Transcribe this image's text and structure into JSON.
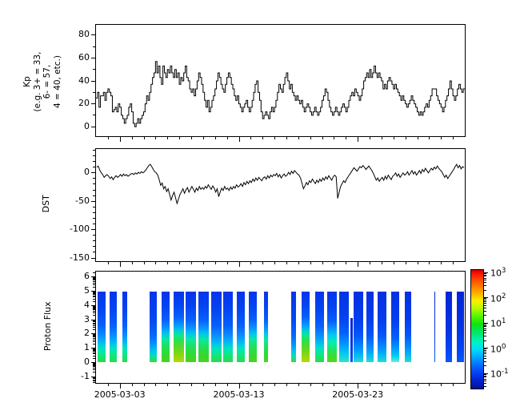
{
  "figure": {
    "background": "#ffffff",
    "line_color": "#000000"
  },
  "xaxis": {
    "tick_days": [
      2,
      12,
      22
    ],
    "tick_labels": [
      "2005-03-03",
      "2005-03-13",
      "2005-03-23"
    ],
    "minor_tick_every_days": 1,
    "total_days": 31,
    "x_range": [
      "2005-03-01",
      "2005-04-01"
    ]
  },
  "chart_data": [
    {
      "type": "line",
      "subtype": "step",
      "ylabel": "Kp (e.g. 3+ = 33, 6- = 57, 4 = 40, etc.)",
      "ylabel_lines": [
        "Kp",
        "(e.g. 3+ = 33,",
        "6- = 57,",
        "4 = 40, etc.)"
      ],
      "color": "#000000",
      "ylim": [
        -8.3,
        89
      ],
      "yticks": [
        0,
        20,
        40,
        60,
        80
      ],
      "ytick_labels": [
        "0",
        "20",
        "40",
        "60",
        "80"
      ],
      "yminor": [
        10,
        30,
        50,
        70
      ],
      "points_per_day": 8,
      "values": [
        25,
        30,
        17,
        27,
        27,
        30,
        23,
        30,
        33,
        30,
        27,
        13,
        15,
        17,
        13,
        20,
        17,
        10,
        7,
        3,
        7,
        10,
        17,
        20,
        13,
        3,
        0,
        3,
        7,
        3,
        7,
        10,
        13,
        20,
        27,
        23,
        30,
        37,
        43,
        47,
        57,
        47,
        53,
        43,
        37,
        53,
        47,
        43,
        50,
        47,
        53,
        47,
        43,
        50,
        43,
        47,
        37,
        43,
        40,
        47,
        53,
        43,
        40,
        33,
        30,
        33,
        27,
        33,
        40,
        47,
        43,
        37,
        30,
        23,
        17,
        23,
        13,
        17,
        23,
        27,
        33,
        40,
        47,
        43,
        37,
        33,
        30,
        37,
        43,
        47,
        43,
        37,
        33,
        27,
        23,
        27,
        20,
        17,
        13,
        17,
        20,
        23,
        17,
        13,
        17,
        23,
        30,
        37,
        40,
        30,
        23,
        13,
        7,
        10,
        13,
        10,
        7,
        13,
        17,
        13,
        17,
        23,
        30,
        37,
        33,
        30,
        37,
        43,
        47,
        40,
        33,
        37,
        30,
        27,
        23,
        27,
        23,
        20,
        23,
        17,
        13,
        17,
        20,
        17,
        13,
        10,
        13,
        17,
        13,
        10,
        13,
        17,
        23,
        27,
        33,
        30,
        23,
        17,
        13,
        10,
        13,
        17,
        13,
        10,
        13,
        17,
        20,
        17,
        13,
        17,
        23,
        27,
        30,
        27,
        33,
        30,
        27,
        23,
        27,
        33,
        40,
        43,
        47,
        43,
        50,
        43,
        47,
        53,
        47,
        43,
        47,
        43,
        40,
        33,
        37,
        33,
        40,
        43,
        40,
        37,
        33,
        37,
        33,
        30,
        27,
        23,
        27,
        23,
        20,
        17,
        20,
        23,
        27,
        23,
        20,
        17,
        13,
        10,
        13,
        10,
        13,
        17,
        20,
        17,
        23,
        27,
        33,
        33,
        33,
        27,
        23,
        20,
        17,
        13,
        17,
        23,
        27,
        33,
        40,
        33,
        27,
        23,
        27,
        33,
        37,
        33,
        30,
        33
      ]
    },
    {
      "type": "line",
      "ylabel": "DST",
      "color": "#000000",
      "ylim": [
        -155.6,
        42
      ],
      "yticks": [
        0,
        -50,
        -100,
        -150
      ],
      "ytick_labels": [
        "0",
        "-50",
        "-100",
        "-150"
      ],
      "yminor_step": 10,
      "points_per_day": 8,
      "values": [
        10,
        12,
        5,
        0,
        -3,
        -8,
        -5,
        -3,
        -6,
        -10,
        -7,
        -12,
        -8,
        -5,
        -8,
        -6,
        -3,
        -6,
        -2,
        -5,
        -3,
        -6,
        -4,
        -2,
        -1,
        -3,
        0,
        -2,
        1,
        -1,
        2,
        0,
        2,
        5,
        9,
        13,
        15,
        11,
        6,
        2,
        0,
        -4,
        -12,
        -22,
        -18,
        -28,
        -24,
        -33,
        -28,
        -38,
        -48,
        -40,
        -34,
        -44,
        -54,
        -46,
        -38,
        -33,
        -28,
        -36,
        -30,
        -26,
        -34,
        -29,
        -24,
        -29,
        -34,
        -27,
        -31,
        -24,
        -29,
        -26,
        -29,
        -24,
        -27,
        -21,
        -25,
        -29,
        -23,
        -27,
        -34,
        -28,
        -42,
        -34,
        -27,
        -31,
        -24,
        -29,
        -27,
        -31,
        -25,
        -29,
        -24,
        -27,
        -21,
        -25,
        -23,
        -19,
        -24,
        -17,
        -21,
        -15,
        -19,
        -14,
        -17,
        -11,
        -15,
        -9,
        -13,
        -8,
        -11,
        -14,
        -9,
        -7,
        -11,
        -5,
        -9,
        -4,
        -7,
        -3,
        -5,
        -1,
        -7,
        -3,
        -9,
        -5,
        -2,
        -6,
        -4,
        1,
        -3,
        3,
        -1,
        4,
        1,
        -2,
        -4,
        -9,
        -18,
        -28,
        -23,
        -17,
        -21,
        -14,
        -17,
        -11,
        -15,
        -19,
        -13,
        -17,
        -11,
        -15,
        -9,
        -13,
        -7,
        -11,
        -5,
        -9,
        -13,
        -7,
        -4,
        -7,
        -45,
        -34,
        -24,
        -19,
        -14,
        -17,
        -11,
        -7,
        -3,
        1,
        5,
        9,
        6,
        3,
        7,
        11,
        9,
        13,
        10,
        6,
        9,
        12,
        8,
        4,
        -1,
        -7,
        -13,
        -9,
        -15,
        -11,
        -8,
        -13,
        -6,
        -11,
        -4,
        -8,
        -12,
        -6,
        -4,
        0,
        -6,
        -2,
        -8,
        -4,
        0,
        -4,
        -2,
        2,
        -4,
        0,
        4,
        -2,
        2,
        -4,
        0,
        4,
        -1,
        6,
        2,
        8,
        4,
        0,
        4,
        8,
        5,
        10,
        7,
        12,
        8,
        5,
        2,
        -3,
        -8,
        -4,
        -10,
        -6,
        -2,
        2,
        6,
        11,
        15,
        9,
        13,
        7,
        11,
        9
      ]
    },
    {
      "type": "heatmap",
      "ylabel": "Proton Flux",
      "ylim": [
        -1.44,
        6.39
      ],
      "yticks": [
        -1,
        0,
        1,
        2,
        3,
        4,
        5,
        6
      ],
      "ytick_labels": [
        "-1",
        "0",
        "1",
        "2",
        "3",
        "4",
        "5",
        "6"
      ],
      "yminor_log": true,
      "bars": [
        {
          "start_day": 0.15,
          "end_day": 0.78,
          "profile": "med",
          "y_top": 5,
          "y_bottom": 0
        },
        {
          "start_day": 1.15,
          "end_day": 1.78,
          "profile": "med",
          "y_top": 5,
          "y_bottom": 0
        },
        {
          "start_day": 2.2,
          "end_day": 2.62,
          "profile": "med",
          "y_top": 5,
          "y_bottom": 0
        },
        {
          "start_day": 4.5,
          "end_day": 5.1,
          "profile": "med2",
          "y_top": 5,
          "y_bottom": 0
        },
        {
          "start_day": 5.5,
          "end_day": 6.2,
          "profile": "strong",
          "y_top": 5,
          "y_bottom": 0
        },
        {
          "start_day": 6.55,
          "end_day": 7.4,
          "profile": "vstrong",
          "y_top": 5,
          "y_bottom": 0
        },
        {
          "start_day": 7.52,
          "end_day": 8.42,
          "profile": "strong",
          "y_top": 5,
          "y_bottom": 0
        },
        {
          "start_day": 8.58,
          "end_day": 9.5,
          "profile": "strong",
          "y_top": 5,
          "y_bottom": 0
        },
        {
          "start_day": 9.68,
          "end_day": 10.52,
          "profile": "med",
          "y_top": 5,
          "y_bottom": 0
        },
        {
          "start_day": 10.72,
          "end_day": 11.52,
          "profile": "med",
          "y_top": 5,
          "y_bottom": 0
        },
        {
          "start_day": 11.85,
          "end_day": 12.52,
          "profile": "med",
          "y_top": 5,
          "y_bottom": 0
        },
        {
          "start_day": 12.85,
          "end_day": 13.52,
          "profile": "strong",
          "y_top": 5,
          "y_bottom": 0
        },
        {
          "start_day": 14.1,
          "end_day": 14.48,
          "profile": "strong",
          "y_top": 5,
          "y_bottom": 0
        },
        {
          "start_day": 16.4,
          "end_day": 16.82,
          "profile": "med2",
          "y_top": 5,
          "y_bottom": 0
        },
        {
          "start_day": 17.28,
          "end_day": 17.95,
          "profile": "vstrong",
          "y_top": 5,
          "y_bottom": 0
        },
        {
          "start_day": 18.42,
          "end_day": 19.15,
          "profile": "med",
          "y_top": 5,
          "y_bottom": 0
        },
        {
          "start_day": 19.42,
          "end_day": 20.22,
          "profile": "vstrongcyan",
          "y_top": 5,
          "y_bottom": 0
        },
        {
          "start_day": 20.42,
          "end_day": 21.25,
          "profile": "medcyan",
          "y_top": 5,
          "y_bottom": 0
        },
        {
          "start_day": 21.35,
          "end_day": 21.6,
          "profile": "blue",
          "y_top": 3.1,
          "y_bottom": 0
        },
        {
          "start_day": 21.65,
          "end_day": 22.45,
          "profile": "weak",
          "y_top": 5,
          "y_bottom": 0
        },
        {
          "start_day": 22.7,
          "end_day": 23.32,
          "profile": "weak",
          "y_top": 5,
          "y_bottom": 0
        },
        {
          "start_day": 23.7,
          "end_day": 24.42,
          "profile": "weak",
          "y_top": 5,
          "y_bottom": 0
        },
        {
          "start_day": 24.82,
          "end_day": 25.48,
          "profile": "weakcyan",
          "y_top": 5,
          "y_bottom": 0
        },
        {
          "start_day": 25.95,
          "end_day": 26.5,
          "profile": "weak",
          "y_top": 5,
          "y_bottom": 0
        },
        {
          "start_day": 28.42,
          "end_day": 28.52,
          "profile": "blue",
          "y_top": 5,
          "y_bottom": 0
        },
        {
          "start_day": 29.35,
          "end_day": 29.95,
          "profile": "blue",
          "y_top": 5,
          "y_bottom": 0
        },
        {
          "start_day": 30.3,
          "end_day": 30.95,
          "profile": "blue",
          "y_top": 5,
          "y_bottom": 0
        }
      ],
      "profiles": {
        "med": [
          [
            0,
            "#0535ea"
          ],
          [
            25,
            "#0443f2"
          ],
          [
            48,
            "#0560fa"
          ],
          [
            62,
            "#0b8cff"
          ],
          [
            72,
            "#00baf2"
          ],
          [
            80,
            "#00e0c8"
          ],
          [
            88,
            "#0ae98c"
          ],
          [
            100,
            "#2cd94a"
          ]
        ],
        "med2": [
          [
            0,
            "#0535ea"
          ],
          [
            40,
            "#0448f2"
          ],
          [
            62,
            "#0568fa"
          ],
          [
            75,
            "#0096ff"
          ],
          [
            85,
            "#00c8e8"
          ],
          [
            93,
            "#10e0a0"
          ],
          [
            100,
            "#38d83a"
          ]
        ],
        "strong": [
          [
            0,
            "#0535ea"
          ],
          [
            20,
            "#0443f2"
          ],
          [
            40,
            "#0560fa"
          ],
          [
            52,
            "#0b94ff"
          ],
          [
            60,
            "#00c8e8"
          ],
          [
            68,
            "#0ae8a0"
          ],
          [
            78,
            "#20e05a"
          ],
          [
            90,
            "#34d830"
          ],
          [
            100,
            "#4cd41e"
          ]
        ],
        "vstrong": [
          [
            0,
            "#0535ea"
          ],
          [
            18,
            "#0443f2"
          ],
          [
            36,
            "#0560fa"
          ],
          [
            47,
            "#0b94ff"
          ],
          [
            55,
            "#00cce0"
          ],
          [
            62,
            "#0ae890"
          ],
          [
            70,
            "#30e048"
          ],
          [
            80,
            "#5cd822"
          ],
          [
            90,
            "#8cd60e"
          ],
          [
            100,
            "#b4da06"
          ]
        ],
        "vstrongcyan": [
          [
            0,
            "#0535ea"
          ],
          [
            22,
            "#0443f2"
          ],
          [
            42,
            "#0560fa"
          ],
          [
            54,
            "#0b9cff"
          ],
          [
            63,
            "#00d2e8"
          ],
          [
            72,
            "#06eeb4"
          ],
          [
            82,
            "#1ce668"
          ],
          [
            92,
            "#3cdc2e"
          ],
          [
            100,
            "#54d81c"
          ]
        ],
        "medcyan": [
          [
            0,
            "#0433e6"
          ],
          [
            35,
            "#0440f0"
          ],
          [
            58,
            "#0560fa"
          ],
          [
            74,
            "#0094ff"
          ],
          [
            87,
            "#00c8f0"
          ],
          [
            100,
            "#2ce4cc"
          ]
        ],
        "weak": [
          [
            0,
            "#0330e2"
          ],
          [
            38,
            "#033cec"
          ],
          [
            62,
            "#0456f8"
          ],
          [
            78,
            "#0588ff"
          ],
          [
            90,
            "#00b8f4"
          ],
          [
            100,
            "#28dcd0"
          ]
        ],
        "weakcyan": [
          [
            0,
            "#0330e2"
          ],
          [
            42,
            "#0340ee"
          ],
          [
            66,
            "#0462fa"
          ],
          [
            80,
            "#0098ff"
          ],
          [
            91,
            "#00ccf0"
          ],
          [
            100,
            "#64eed8"
          ]
        ],
        "blue": [
          [
            0,
            "#0226d8"
          ],
          [
            55,
            "#0334e6"
          ],
          [
            82,
            "#0444f2"
          ],
          [
            100,
            "#0558fa"
          ]
        ]
      },
      "colorbar": {
        "scale": "log",
        "tick_exps": [
          3,
          2,
          1,
          0,
          -1
        ],
        "tick_labels": [
          "10^3",
          "10^2",
          "10^1",
          "10^0",
          "10^-1"
        ],
        "gradient": [
          [
            0,
            "#c80000"
          ],
          [
            3,
            "#f81400"
          ],
          [
            8,
            "#ff4600"
          ],
          [
            14,
            "#ff7c00"
          ],
          [
            20,
            "#ffb400"
          ],
          [
            26,
            "#fcf000"
          ],
          [
            32,
            "#b8fc00"
          ],
          [
            39,
            "#58f400"
          ],
          [
            46,
            "#0ae414"
          ],
          [
            54,
            "#00e878"
          ],
          [
            61,
            "#00f2c8"
          ],
          [
            67,
            "#00dcf4"
          ],
          [
            73,
            "#00acff"
          ],
          [
            80,
            "#0570ff"
          ],
          [
            87,
            "#0440f4"
          ],
          [
            93,
            "#0322d2"
          ],
          [
            100,
            "#02129c"
          ]
        ]
      }
    }
  ]
}
